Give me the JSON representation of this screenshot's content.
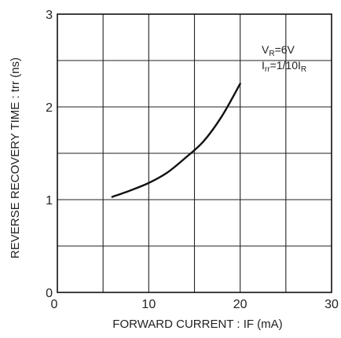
{
  "chart_data": {
    "type": "line",
    "title": "",
    "xlabel": "FORWARD  CURRENT : IF (mA)",
    "ylabel": "REVERSE  RECOVERY  TIME : trr (ns)",
    "xlim": [
      0,
      30
    ],
    "ylim": [
      0,
      3
    ],
    "x_ticks": [
      "0",
      "10",
      "20",
      "30"
    ],
    "y_ticks": [
      "0",
      "1",
      "2",
      "3"
    ],
    "x_ticks_minor_grid": [
      5,
      15,
      25
    ],
    "y_ticks_minor_grid": [
      0.5,
      1.5,
      2.5
    ],
    "grid": true,
    "series": [
      {
        "x": [
          6,
          8,
          10,
          12,
          14,
          16,
          18,
          20
        ],
        "y": [
          1.03,
          1.1,
          1.18,
          1.29,
          1.45,
          1.63,
          1.9,
          2.25
        ]
      }
    ],
    "annotation": {
      "line1": {
        "main": "V",
        "sub": "R",
        "rest": "=6V"
      },
      "line2": {
        "main": "I",
        "sub": "rr",
        "rest": "=1/10I",
        "sub2": "R"
      }
    }
  }
}
